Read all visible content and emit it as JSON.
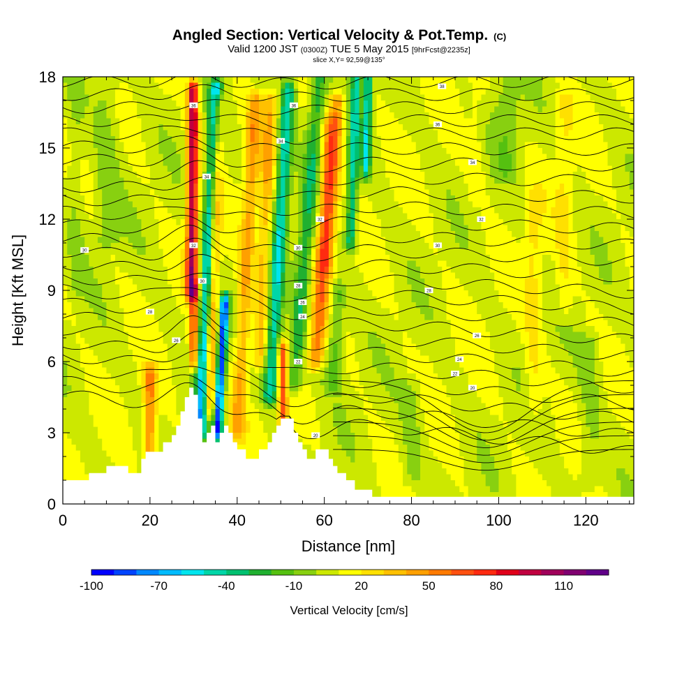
{
  "chart_data": {
    "type": "heatmap",
    "title": "Angled Section: Vertical Velocity & Pot.Temp.",
    "title_units": "(C)",
    "subtitle": {
      "prefix": "Valid 1200 JST",
      "zulu": "(0300Z)",
      "date": "TUE 5 May 2015",
      "forecast": "[9hrFcst@2235z]"
    },
    "slice_info": "slice X,Y= 92,59@135°",
    "xlabel": "Distance [nm]",
    "ylabel": "Height [Kft MSL]",
    "xlim": [
      0,
      131
    ],
    "ylim": [
      0,
      18
    ],
    "xticks": [
      0,
      20,
      40,
      60,
      80,
      100,
      120
    ],
    "yticks": [
      0,
      3,
      6,
      9,
      12,
      15,
      18
    ],
    "colorbar": {
      "label": "Vertical Velocity [cm/s]",
      "tick_labels": [
        "-100",
        "-70",
        "-40",
        "-10",
        "20",
        "50",
        "80",
        "110"
      ],
      "levels": [
        -100,
        -90,
        -80,
        -70,
        -60,
        -50,
        -40,
        -30,
        -20,
        -10,
        0,
        10,
        20,
        30,
        40,
        50,
        60,
        70,
        80,
        90,
        100,
        110,
        120
      ],
      "colors": [
        "#0000ff",
        "#0044ff",
        "#0088ff",
        "#00bbff",
        "#00e5ee",
        "#00d6a8",
        "#00c070",
        "#20b030",
        "#55c010",
        "#88d010",
        "#cce800",
        "#ffff00",
        "#ffe000",
        "#ffc000",
        "#ffa000",
        "#ff7a00",
        "#ff5010",
        "#ff2a10",
        "#e0001a",
        "#c00040",
        "#a0005a",
        "#800070",
        "#600088"
      ]
    },
    "terrain_kft": [
      [
        0,
        1.0
      ],
      [
        5,
        1.0
      ],
      [
        6,
        1.3
      ],
      [
        9,
        1.3
      ],
      [
        10,
        1.6
      ],
      [
        14,
        1.6
      ],
      [
        15,
        1.3
      ],
      [
        17,
        1.3
      ],
      [
        18,
        1.9
      ],
      [
        19,
        2.2
      ],
      [
        22,
        2.2
      ],
      [
        23,
        2.6
      ],
      [
        25,
        2.9
      ],
      [
        26,
        3.3
      ],
      [
        27,
        3.9
      ],
      [
        28,
        4.5
      ],
      [
        29,
        4.9
      ],
      [
        30,
        4.6
      ],
      [
        31,
        3.6
      ],
      [
        32,
        2.6
      ],
      [
        33,
        3.0
      ],
      [
        34,
        3.3
      ],
      [
        35,
        2.6
      ],
      [
        36,
        3.0
      ],
      [
        37,
        3.3
      ],
      [
        38,
        3.0
      ],
      [
        39,
        2.6
      ],
      [
        40,
        2.3
      ],
      [
        41,
        2.3
      ],
      [
        42,
        1.9
      ],
      [
        44,
        1.9
      ],
      [
        45,
        2.3
      ],
      [
        47,
        2.6
      ],
      [
        48,
        3.0
      ],
      [
        49,
        3.3
      ],
      [
        50,
        3.6
      ],
      [
        52,
        3.6
      ],
      [
        53,
        3.0
      ],
      [
        54,
        2.6
      ],
      [
        55,
        2.3
      ],
      [
        56,
        1.9
      ],
      [
        57,
        1.9
      ],
      [
        58,
        2.3
      ],
      [
        60,
        2.3
      ],
      [
        61,
        1.9
      ],
      [
        62,
        1.6
      ],
      [
        63,
        1.3
      ],
      [
        65,
        1.0
      ],
      [
        67,
        0.6
      ],
      [
        70,
        0.6
      ],
      [
        71,
        0.3
      ],
      [
        131,
        0.3
      ]
    ],
    "contour_labels": [
      {
        "x": 5,
        "y": 10.7,
        "text": "30"
      },
      {
        "x": 20,
        "y": 8.1,
        "text": "28"
      },
      {
        "x": 26,
        "y": 6.9,
        "text": "26"
      },
      {
        "x": 30,
        "y": 10.9,
        "text": "32"
      },
      {
        "x": 32,
        "y": 9.4,
        "text": "30"
      },
      {
        "x": 33,
        "y": 13.8,
        "text": "34"
      },
      {
        "x": 30,
        "y": 16.8,
        "text": "36"
      },
      {
        "x": 53,
        "y": 16.8,
        "text": "36"
      },
      {
        "x": 50,
        "y": 15.3,
        "text": "34"
      },
      {
        "x": 59,
        "y": 12.0,
        "text": "32"
      },
      {
        "x": 54,
        "y": 10.8,
        "text": "30"
      },
      {
        "x": 54,
        "y": 9.2,
        "text": "28"
      },
      {
        "x": 55,
        "y": 8.5,
        "text": "26"
      },
      {
        "x": 55,
        "y": 7.9,
        "text": "24"
      },
      {
        "x": 54,
        "y": 6.0,
        "text": "22"
      },
      {
        "x": 58,
        "y": 2.9,
        "text": "20"
      },
      {
        "x": 87,
        "y": 17.6,
        "text": "38"
      },
      {
        "x": 86,
        "y": 16.0,
        "text": "36"
      },
      {
        "x": 94,
        "y": 14.4,
        "text": "34"
      },
      {
        "x": 96,
        "y": 12.0,
        "text": "32"
      },
      {
        "x": 86,
        "y": 10.9,
        "text": "30"
      },
      {
        "x": 84,
        "y": 9.0,
        "text": "28"
      },
      {
        "x": 95,
        "y": 7.1,
        "text": "26"
      },
      {
        "x": 91,
        "y": 6.1,
        "text": "24"
      },
      {
        "x": 90,
        "y": 5.5,
        "text": "22"
      },
      {
        "x": 94,
        "y": 4.9,
        "text": "20"
      }
    ]
  }
}
